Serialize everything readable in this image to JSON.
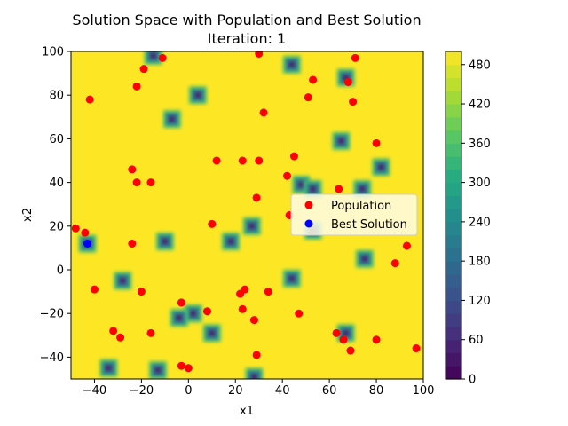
{
  "chart_data": {
    "type": "scatter",
    "title": "Solution Space with Population and Best Solution",
    "subtitle": "Iteration: 1",
    "xlabel": "x1",
    "ylabel": "x2",
    "xlim": [
      -50,
      100
    ],
    "ylim": [
      -50,
      100
    ],
    "xticks": [
      "−40",
      "−20",
      "0",
      "20",
      "40",
      "60",
      "80",
      "100"
    ],
    "yticks": [
      "−40",
      "−20",
      "0",
      "20",
      "40",
      "60",
      "80",
      "100"
    ],
    "legend_position": "center-right",
    "background_level": 500,
    "colorbar": {
      "min": 0,
      "max": 500,
      "ticks": [
        "0",
        "60",
        "120",
        "180",
        "240",
        "300",
        "360",
        "420",
        "480"
      ],
      "colormap": "viridis"
    },
    "minima": [
      [
        -15,
        98
      ],
      [
        44,
        94
      ],
      [
        4,
        80
      ],
      [
        67,
        88
      ],
      [
        -7,
        69
      ],
      [
        65,
        59
      ],
      [
        82,
        47
      ],
      [
        48,
        39
      ],
      [
        53,
        37
      ],
      [
        74,
        37
      ],
      [
        -43,
        12
      ],
      [
        -10,
        13
      ],
      [
        18,
        13
      ],
      [
        27,
        20
      ],
      [
        53,
        18
      ],
      [
        75,
        5
      ],
      [
        -28,
        -5
      ],
      [
        44,
        -4
      ],
      [
        2,
        -20
      ],
      [
        -4,
        -22
      ],
      [
        10,
        -29
      ],
      [
        67,
        -29
      ],
      [
        -34,
        -45
      ],
      [
        -13,
        -46
      ],
      [
        28,
        -49
      ]
    ],
    "series": [
      {
        "name": "Population",
        "color": "#ff0000",
        "points": [
          [
            -42,
            78
          ],
          [
            -22,
            84
          ],
          [
            -19,
            92
          ],
          [
            -11,
            97
          ],
          [
            30,
            99
          ],
          [
            71,
            97
          ],
          [
            53,
            87
          ],
          [
            68,
            86
          ],
          [
            51,
            79
          ],
          [
            70,
            77
          ],
          [
            32,
            72
          ],
          [
            80,
            58
          ],
          [
            12,
            50
          ],
          [
            23,
            50
          ],
          [
            30,
            50
          ],
          [
            45,
            52
          ],
          [
            -24,
            46
          ],
          [
            -22,
            40
          ],
          [
            -16,
            40
          ],
          [
            42,
            43
          ],
          [
            64,
            37
          ],
          [
            29,
            33
          ],
          [
            10,
            21
          ],
          [
            43,
            25
          ],
          [
            -48,
            19
          ],
          [
            -44,
            17
          ],
          [
            -24,
            12
          ],
          [
            93,
            11
          ],
          [
            88,
            3
          ],
          [
            -40,
            -9
          ],
          [
            -20,
            -10
          ],
          [
            22,
            -11
          ],
          [
            24,
            -9
          ],
          [
            34,
            -10
          ],
          [
            -3,
            -15
          ],
          [
            23,
            -18
          ],
          [
            47,
            -20
          ],
          [
            8,
            -19
          ],
          [
            28,
            -23
          ],
          [
            -16,
            -29
          ],
          [
            -32,
            -28
          ],
          [
            -29,
            -31
          ],
          [
            63,
            -29
          ],
          [
            66,
            -32
          ],
          [
            80,
            -32
          ],
          [
            69,
            -37
          ],
          [
            97,
            -36
          ],
          [
            29,
            -39
          ],
          [
            -3,
            -44
          ],
          [
            0,
            -45
          ]
        ]
      },
      {
        "name": "Best Solution",
        "color": "#0000ff",
        "points": [
          [
            -43,
            12
          ]
        ]
      }
    ]
  }
}
